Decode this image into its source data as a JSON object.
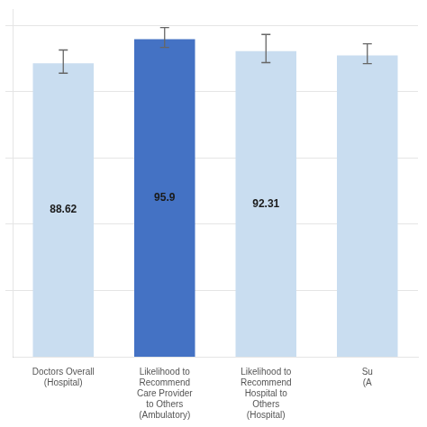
{
  "chart_data": {
    "type": "bar",
    "categories": [
      "Doctors Overall\n(Hospital)",
      "Likelihood to\nRecommend\nCare Provider\nto Others\n(Ambulatory)",
      "Likelihood to\nRecommend\nHospital to\nOthers\n(Hospital)",
      "Su\n(A"
    ],
    "values": [
      88.62,
      95.9,
      92.31,
      91.0
    ],
    "value_labels": [
      "88.62",
      "95.9",
      "92.31",
      null
    ],
    "errors_up": [
      4.0,
      3.5,
      5.0,
      3.5
    ],
    "errors_down": [
      3.0,
      2.5,
      3.5,
      2.5
    ],
    "colors": [
      "#c9ddf0",
      "#4472c4",
      "#c9ddf0",
      "#c9ddf0"
    ],
    "ylim": [
      0,
      105
    ],
    "yticks": [
      20,
      40,
      60,
      80,
      100
    ],
    "grid": true,
    "tick_labels": "x"
  }
}
